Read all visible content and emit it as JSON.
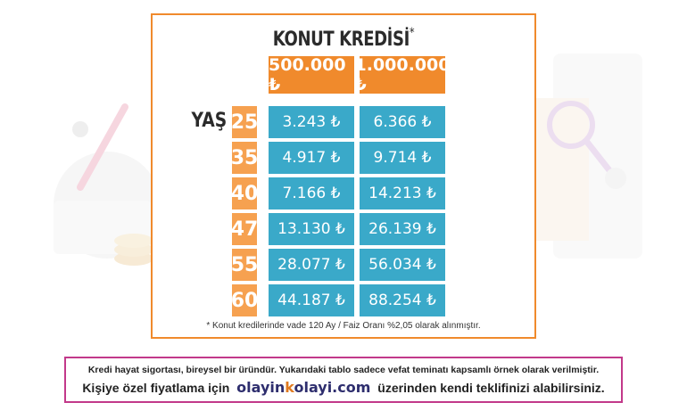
{
  "title": "KONUT KREDİSİ",
  "title_mark": "*",
  "currency_symbol": "₺",
  "columns": [
    "500.000 ₺",
    "1.000.000 ₺"
  ],
  "row_label": "YAŞ",
  "rows": [
    {
      "age": "25",
      "v1": "3.243 ₺",
      "v2": "6.366 ₺"
    },
    {
      "age": "35",
      "v1": "4.917 ₺",
      "v2": "9.714 ₺"
    },
    {
      "age": "40",
      "v1": "7.166 ₺",
      "v2": "14.213 ₺"
    },
    {
      "age": "47",
      "v1": "13.130 ₺",
      "v2": "26.139 ₺"
    },
    {
      "age": "55",
      "v1": "28.077 ₺",
      "v2": "56.034 ₺"
    },
    {
      "age": "60",
      "v1": "44.187 ₺",
      "v2": "88.254 ₺"
    }
  ],
  "note": "* Konut kredilerinde vade 120 Ay / Faiz Oranı %2,05 olarak alınmıştır.",
  "footer": {
    "line1": "Kredi hayat sigortası, bireysel bir üründür. Yukarıdaki tablo sadece vefat teminatı kapsamlı örnek olarak verilmiştir.",
    "line2_pre": "Kişiye özel fiyatlama için",
    "brand_a": "olayin",
    "brand_k": "k",
    "brand_b": "olayi.com",
    "line2_post": "üzerinden kendi teklifinizi alabilirsiniz."
  },
  "colors": {
    "orange": "#f08a2c",
    "age_orange": "#f6a150",
    "blue": "#3aa9c9",
    "footer_border": "#c2398a"
  }
}
